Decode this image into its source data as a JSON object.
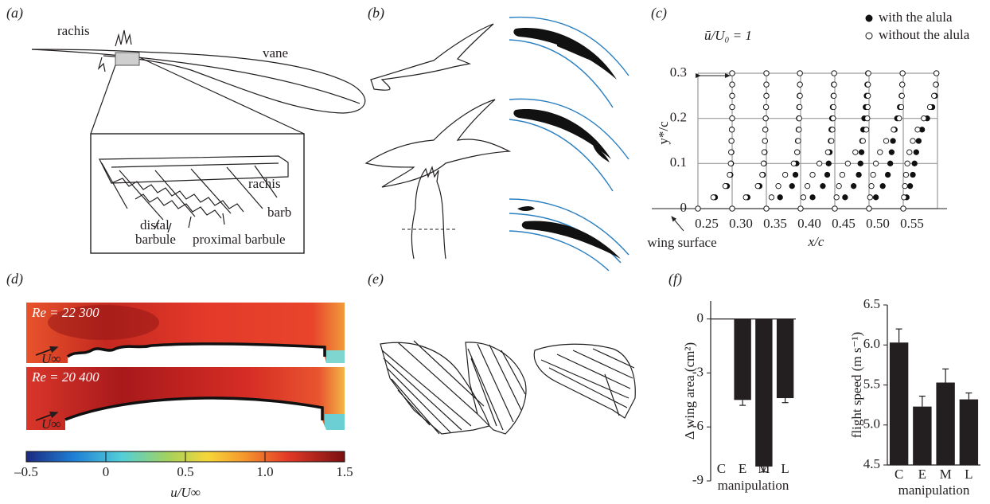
{
  "panel_labels": [
    "(a)",
    "(b)",
    "(c)",
    "(d)",
    "(e)",
    "(f)"
  ],
  "panel_a": {
    "labels": [
      "rachis",
      "vane",
      "rachis",
      "barb",
      "distal",
      "barbule",
      "proximal barbule"
    ]
  },
  "panel_d": {
    "annotations": [
      "Re = 22 300",
      "Re = 20 400"
    ],
    "flow_symbol": "U∞",
    "colorbar": {
      "xlim": [
        -0.5,
        1.5
      ],
      "xticks": [
        {
          "value": -0.5,
          "label": "–0.5"
        },
        0,
        0.5,
        {
          "value": 1,
          "label": "1.0"
        },
        1.5
      ],
      "xlabel": "u/U∞"
    }
  },
  "chart_data": [
    {
      "type": "scatter",
      "xlabel": "x/c",
      "ylabel": "y*/c",
      "annotations": [
        "ū/U₀ = 1",
        "wing surface"
      ],
      "xlim": [
        0.25,
        0.6
      ],
      "xticks": [
        0.25,
        {
          "value": 0.3,
          "label": "0.30"
        },
        0.35,
        {
          "value": 0.4,
          "label": "0.40"
        },
        0.45,
        {
          "value": 0.5,
          "label": "0.50"
        },
        0.55
      ],
      "ylim": [
        0,
        0.3
      ],
      "yticks": [
        0,
        0.1,
        0.2,
        0.3
      ],
      "grid": true,
      "y": [
        0,
        0.025,
        0.05,
        0.075,
        0.1,
        0.125,
        0.15,
        0.175,
        0.2,
        0.225,
        0.25,
        0.275,
        0.3
      ],
      "series": [
        {
          "name": "with the alula",
          "color": "#111111",
          "filled": true,
          "profiles": [
            [
              0,
              0.5,
              0.85,
              0.95,
              0.97,
              0.98,
              0.98,
              0.99,
              1,
              1,
              1,
              1,
              1
            ],
            [
              0,
              0.45,
              0.8,
              0.9,
              0.93,
              0.95,
              0.96,
              0.97,
              0.98,
              0.99,
              1,
              1,
              1
            ],
            [
              0,
              0.4,
              0.75,
              0.85,
              0.88,
              0.9,
              0.92,
              0.94,
              0.95,
              0.96,
              0.97,
              0.98,
              0.98
            ],
            [
              0,
              0.35,
              0.65,
              0.78,
              0.82,
              0.85,
              0.88,
              0.9,
              0.92,
              0.94,
              0.96,
              0.97,
              0.98
            ],
            [
              0,
              0.3,
              0.55,
              0.7,
              0.75,
              0.78,
              0.8,
              0.83,
              0.86,
              0.9,
              0.93,
              0.95,
              0.97
            ],
            [
              0,
              0.2,
              0.4,
              0.55,
              0.62,
              0.66,
              0.7,
              0.75,
              0.82,
              0.9,
              0.95,
              0.97,
              0.98
            ],
            [
              0,
              0.1,
              0.2,
              0.28,
              0.33,
              0.38,
              0.45,
              0.55,
              0.7,
              0.85,
              0.93,
              0.96,
              0.97
            ]
          ]
        },
        {
          "name": "without the alula",
          "color": "#111111",
          "filled": false,
          "profiles": [
            [
              0,
              0.45,
              0.8,
              0.93,
              0.96,
              0.97,
              0.98,
              0.99,
              1,
              1,
              1,
              1,
              1
            ],
            [
              0,
              0.4,
              0.75,
              0.88,
              0.92,
              0.94,
              0.96,
              0.97,
              0.98,
              0.99,
              1,
              1,
              1
            ],
            [
              0,
              0.15,
              0.35,
              0.55,
              0.8,
              0.9,
              0.93,
              0.95,
              0.96,
              0.97,
              0.98,
              0.98,
              0.98
            ],
            [
              0,
              0.08,
              0.2,
              0.35,
              0.55,
              0.8,
              0.9,
              0.93,
              0.95,
              0.96,
              0.97,
              0.98,
              0.98
            ],
            [
              0,
              0.05,
              0.12,
              0.22,
              0.38,
              0.6,
              0.82,
              0.92,
              0.95,
              0.96,
              0.97,
              0.97,
              0.98
            ],
            [
              0,
              0.03,
              0.07,
              0.12,
              0.2,
              0.32,
              0.5,
              0.72,
              0.88,
              0.94,
              0.96,
              0.97,
              0.98
            ],
            [
              0,
              0.02,
              0.05,
              0.08,
              0.12,
              0.18,
              0.28,
              0.42,
              0.6,
              0.78,
              0.9,
              0.95,
              0.97
            ]
          ]
        }
      ]
    },
    {
      "type": "bar",
      "ylabel": "Δ wing area (cm²)",
      "xlabel": "manipulation",
      "categories": [
        "C",
        "E",
        "M",
        "L"
      ],
      "values": [
        0,
        -4.5,
        -8.2,
        -4.4
      ],
      "errors": [
        0,
        0.3,
        0.3,
        0.25
      ],
      "color": "#231f20",
      "ylim": [
        -9,
        1
      ],
      "yticks": [
        -9,
        -6,
        -3,
        0
      ]
    },
    {
      "type": "bar",
      "ylabel": "flight speed (m s⁻¹)",
      "xlabel": "manipulation",
      "categories": [
        "C",
        "E",
        "M",
        "L"
      ],
      "values": [
        6.03,
        5.23,
        5.53,
        5.32
      ],
      "errors": [
        0.17,
        0.13,
        0.17,
        0.08
      ],
      "color": "#231f20",
      "ylim": [
        4.5,
        6.5
      ],
      "yticks": [
        4.5,
        {
          "value": 5,
          "label": "5.0"
        },
        5.5,
        {
          "value": 6,
          "label": "6.0"
        },
        6.5
      ]
    }
  ]
}
